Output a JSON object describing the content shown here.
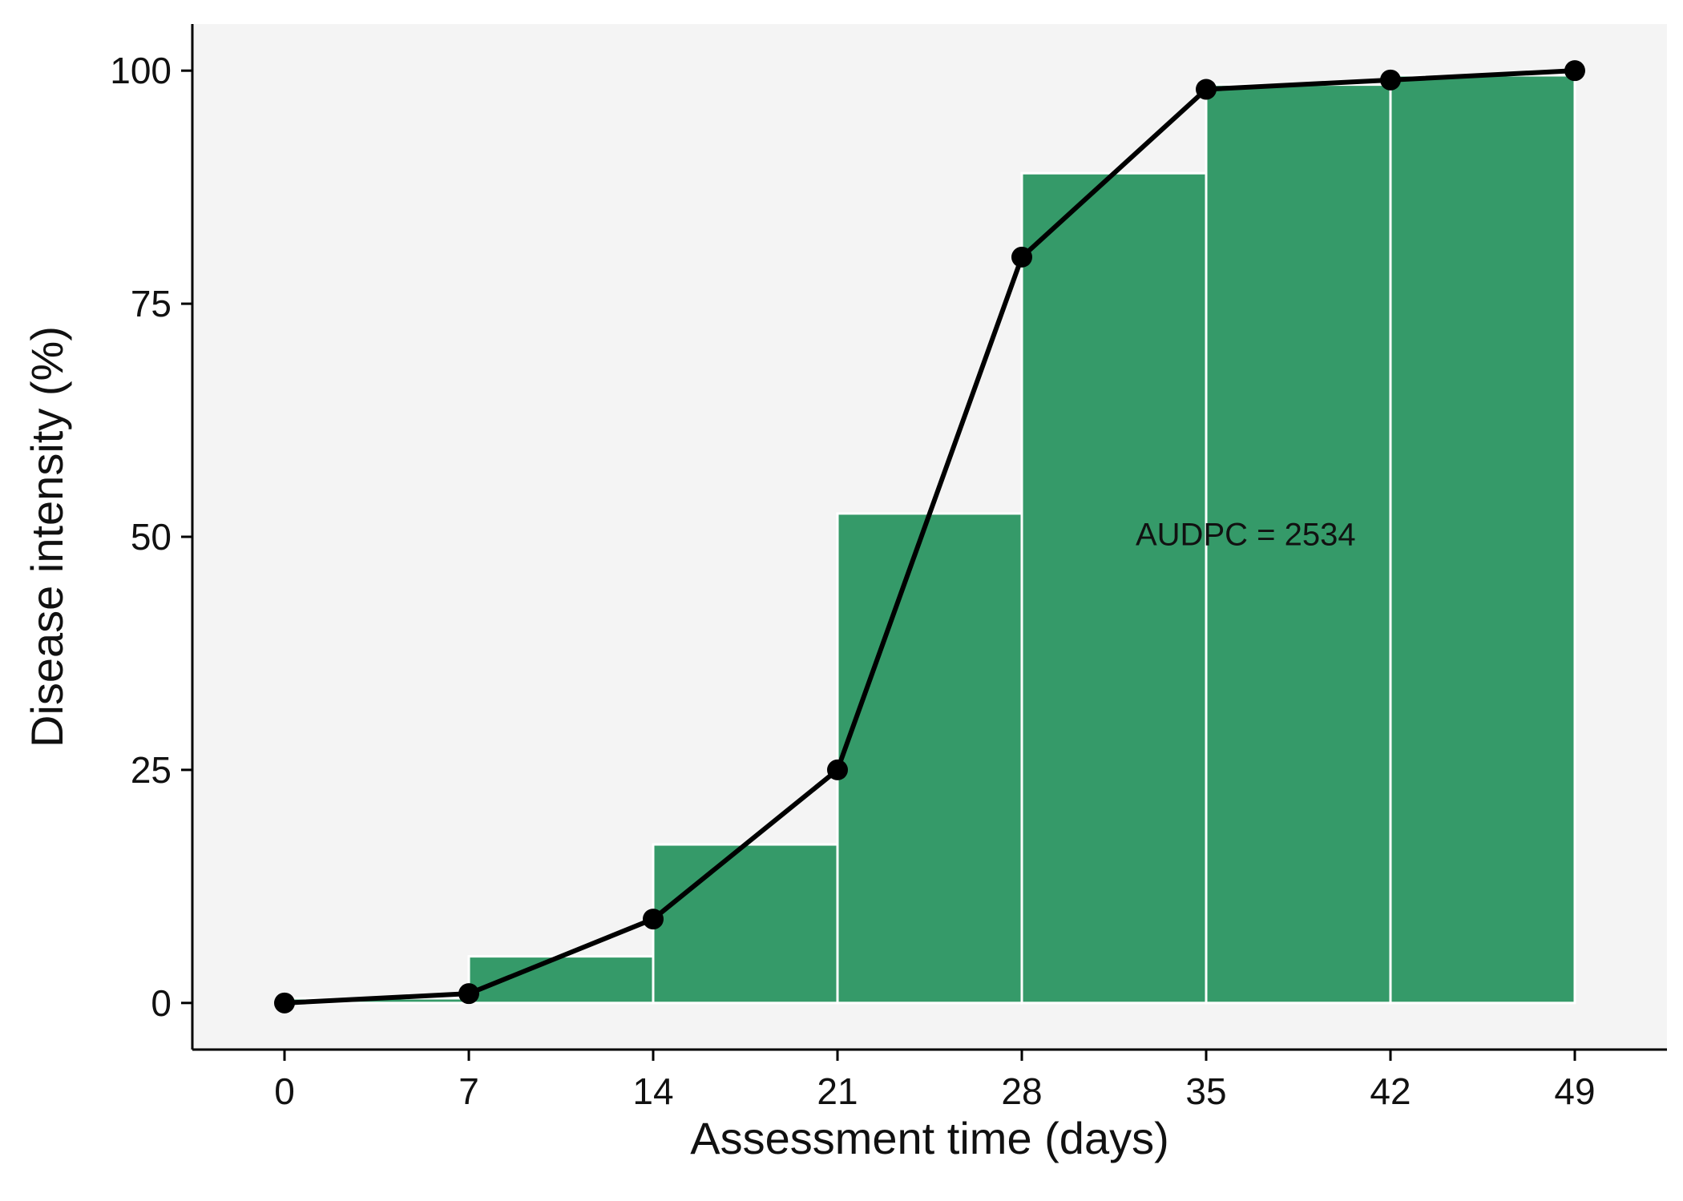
{
  "chart_data": {
    "type": "bar",
    "title": "",
    "xlabel": "Assessment time (days)",
    "ylabel": "Disease intensity (%)",
    "xlim": [
      -3.5,
      52.5
    ],
    "ylim": [
      -5,
      105
    ],
    "x_ticks": [
      "0",
      "7",
      "14",
      "21",
      "28",
      "35",
      "42",
      "49"
    ],
    "y_ticks": [
      "0",
      "25",
      "50",
      "75",
      "100"
    ],
    "grid": false,
    "legend": "none",
    "annotation": {
      "text": "AUDPC = 2534",
      "x": 36.5,
      "y": 50
    },
    "bars": [
      {
        "x_start": 0,
        "x_end": 7,
        "value": 0.5
      },
      {
        "x_start": 7,
        "x_end": 14,
        "value": 5
      },
      {
        "x_start": 14,
        "x_end": 21,
        "value": 17
      },
      {
        "x_start": 21,
        "x_end": 28,
        "value": 52.5
      },
      {
        "x_start": 28,
        "x_end": 35,
        "value": 89
      },
      {
        "x_start": 35,
        "x_end": 42,
        "value": 98.5
      },
      {
        "x_start": 42,
        "x_end": 49,
        "value": 99.5
      }
    ],
    "line": {
      "x": [
        0,
        7,
        14,
        21,
        28,
        35,
        42,
        49
      ],
      "y": [
        0,
        1,
        9,
        25,
        80,
        98,
        99,
        100
      ]
    },
    "colors": {
      "bar": "#359a69",
      "bar_edge": "#ffffff",
      "panel": "#f4f4f4",
      "line": "#000000"
    }
  }
}
